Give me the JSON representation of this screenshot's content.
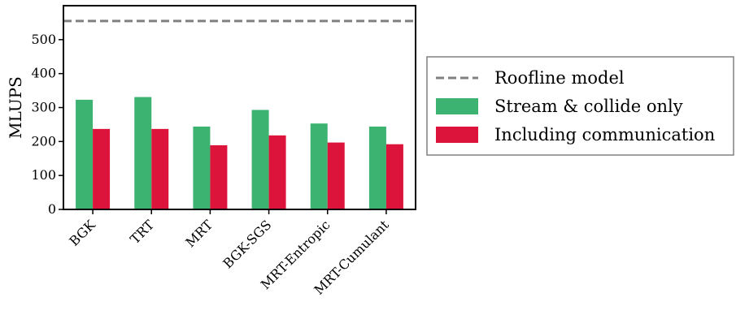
{
  "chart_data": {
    "type": "bar",
    "ylabel": "MLUPS",
    "ylim": [
      0,
      600
    ],
    "yticks": [
      0,
      100,
      200,
      300,
      400,
      500
    ],
    "categories": [
      "BGK",
      "TRT",
      "MRT",
      "BGK-SGS",
      "MRT-Entropic",
      "MRT-Cumulant"
    ],
    "series": [
      {
        "name": "Stream & collide only",
        "color": "#3cb371",
        "values": [
          323,
          331,
          244,
          293,
          253,
          244
        ]
      },
      {
        "name": "Including communication",
        "color": "#dc143c",
        "values": [
          237,
          237,
          189,
          218,
          197,
          192
        ]
      }
    ],
    "reference_line": {
      "name": "Roofline model",
      "value": 555,
      "color": "#808080",
      "style": "dashed"
    },
    "legend_position": "right",
    "grid": false
  }
}
